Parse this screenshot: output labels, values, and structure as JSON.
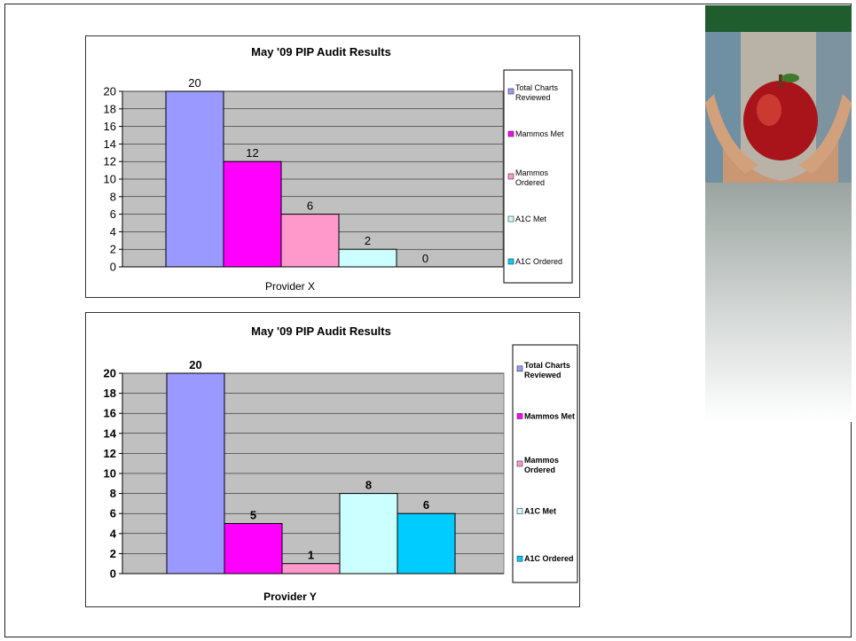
{
  "colors": {
    "total_charts": "#9999FF",
    "mammos_met": "#FF00FF",
    "mammos_ordered": "#FF99CC",
    "a1c_met": "#CCFFFF",
    "a1c_ordered": "#00CCFF",
    "plot_area": "#C0C0C0",
    "header_band": "#1F5C2E"
  },
  "decoration": {
    "photo": "hands-holding-apple"
  },
  "chart_data": [
    {
      "type": "bar",
      "title": "May '09 PIP Audit Results",
      "xlabel": "Provider X",
      "ylabel": "",
      "ylim": [
        0,
        20
      ],
      "yticks": [
        "0",
        "2",
        "4",
        "6",
        "8",
        "10",
        "12",
        "14",
        "16",
        "18",
        "20"
      ],
      "categories": [
        "Provider X"
      ],
      "series": [
        {
          "name": "Total Charts Reviewed",
          "values": [
            20
          ]
        },
        {
          "name": "Mammos Met",
          "values": [
            12
          ]
        },
        {
          "name": "Mammos Ordered",
          "values": [
            6
          ]
        },
        {
          "name": "A1C Met",
          "values": [
            2
          ]
        },
        {
          "name": "A1C Ordered",
          "values": [
            0
          ]
        }
      ],
      "grid": true,
      "legend": "right"
    },
    {
      "type": "bar",
      "title": "May '09 PIP Audit Results",
      "xlabel": "Provider Y",
      "ylabel": "",
      "ylim": [
        0,
        20
      ],
      "yticks": [
        "0",
        "2",
        "4",
        "6",
        "8",
        "10",
        "12",
        "14",
        "16",
        "18",
        "20"
      ],
      "categories": [
        "Provider Y"
      ],
      "series": [
        {
          "name": "Total Charts Reviewed",
          "values": [
            20
          ]
        },
        {
          "name": "Mammos Met",
          "values": [
            5
          ]
        },
        {
          "name": "Mammos Ordered",
          "values": [
            1
          ]
        },
        {
          "name": "A1C Met",
          "values": [
            8
          ]
        },
        {
          "name": "A1C Ordered",
          "values": [
            6
          ]
        }
      ],
      "grid": true,
      "legend": "right"
    }
  ]
}
